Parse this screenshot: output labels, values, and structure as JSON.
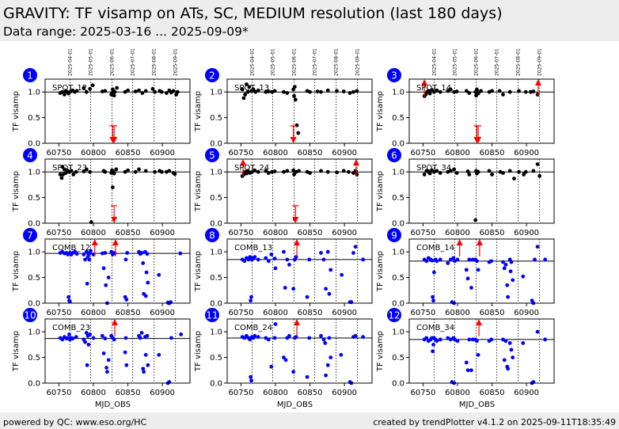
{
  "header": {
    "title": "GRAVITY: TF visamp on ATs, SC, MEDIUM resolution (last 180 days)",
    "subtitle": "Data range: 2025-03-16 ... 2025-09-09*"
  },
  "footer": {
    "left": "powered by QC: www.eso.org/HC",
    "right": "created by trendPlotter v4.1.2 on 2025-09-11T18:35:49"
  },
  "colors": {
    "spot": "#000000",
    "comb": "#0000ff",
    "outlier": "#ff0000",
    "badge": "#0000ff",
    "bar": "#ededed"
  },
  "chart_data": {
    "type": "scatter",
    "xlabel": "MJD_OBS",
    "ylabel": "TF visamp",
    "xlim": [
      60730,
      60940
    ],
    "ylim": [
      0,
      1.25
    ],
    "xticks": [
      60750,
      60800,
      60850,
      60900
    ],
    "yticks": [
      0.0,
      0.5,
      1.0
    ],
    "date_markers": [
      {
        "mjd": 60766,
        "label": "2025-04-01"
      },
      {
        "mjd": 60796,
        "label": "2025-05-01"
      },
      {
        "mjd": 60827,
        "label": "2025-06-01"
      },
      {
        "mjd": 60857,
        "label": "2025-07-01"
      },
      {
        "mjd": 60888,
        "label": "2025-08-01"
      },
      {
        "mjd": 60919,
        "label": "2025-09-01"
      }
    ],
    "panels": [
      {
        "num": "1",
        "label": "SPOT_12",
        "color": "black",
        "ref": 1.0,
        "x": [
          60752,
          60755,
          60758,
          60760,
          60762,
          60764,
          60767,
          60770,
          60773,
          60776,
          60786,
          60790,
          60795,
          60799,
          60813,
          60817,
          60826,
          60827,
          60828,
          60829,
          60830,
          60831,
          60834,
          60846,
          60850,
          60861,
          60866,
          60871,
          60876,
          60886,
          60889,
          60896,
          60899,
          60906,
          60910,
          60913,
          60916,
          60920,
          60922
        ],
        "y": [
          0.98,
          1.0,
          0.95,
          1.02,
          1.0,
          0.97,
          1.01,
          1.03,
          1.0,
          1.02,
          1.08,
          1.0,
          1.06,
          1.13,
          1.01,
          1.02,
          0.95,
          0.98,
          1.05,
          1.02,
          0.93,
          1.0,
          1.08,
          1.0,
          1.03,
          1.01,
          1.03,
          0.98,
          1.02,
          1.06,
          1.0,
          1.02,
          1.0,
          0.98,
          1.03,
          0.99,
          1.02,
          0.95,
          1.0
        ],
        "outliers": [
          {
            "x": 60828,
            "dir": "down"
          },
          {
            "x": 60830,
            "dir": "down"
          }
        ]
      },
      {
        "num": "2",
        "label": "SPOT_13",
        "color": "black",
        "ref": 1.0,
        "x": [
          60752,
          60754,
          60756,
          60758,
          60760,
          60762,
          60765,
          60768,
          60771,
          60775,
          60786,
          60790,
          60795,
          60799,
          60812,
          60817,
          60826,
          60827,
          60828,
          60829,
          60831,
          60833,
          60846,
          60850,
          60861,
          60866,
          60876,
          60889,
          60899,
          60908,
          60913,
          60918
        ],
        "y": [
          1.05,
          0.88,
          0.95,
          1.15,
          1.0,
          1.1,
          1.02,
          1.05,
          1.0,
          1.03,
          1.0,
          1.01,
          1.0,
          1.02,
          1.0,
          0.98,
          1.05,
          0.92,
          1.1,
          0.85,
          0.35,
          0.2,
          1.02,
          1.0,
          1.01,
          1.0,
          1.03,
          1.02,
          1.01,
          0.98,
          1.0,
          1.02
        ],
        "outliers": [
          {
            "x": 60826,
            "dir": "down"
          }
        ]
      },
      {
        "num": "3",
        "label": "SPOT_14",
        "color": "black",
        "ref": 1.0,
        "x": [
          60752,
          60754,
          60756,
          60758,
          60760,
          60763,
          60766,
          60770,
          60775,
          60786,
          60790,
          60795,
          60799,
          60813,
          60817,
          60826,
          60827,
          60828,
          60830,
          60831,
          60834,
          60846,
          60850,
          60861,
          60866,
          60876,
          60889,
          60899,
          60906,
          60910,
          60916
        ],
        "y": [
          0.92,
          0.95,
          1.0,
          1.02,
          0.97,
          1.04,
          1.0,
          1.03,
          1.0,
          1.02,
          1.05,
          1.0,
          1.01,
          1.02,
          0.98,
          1.0,
          0.93,
          1.05,
          0.97,
          1.0,
          1.02,
          1.0,
          1.02,
          1.02,
          0.95,
          1.0,
          1.02,
          1.0,
          1.0,
          1.01,
          0.95
        ],
        "outliers": [
          {
            "x": 60752,
            "dir": "up"
          },
          {
            "x": 60828,
            "dir": "down"
          },
          {
            "x": 60830,
            "dir": "down"
          },
          {
            "x": 60917,
            "dir": "up"
          }
        ]
      },
      {
        "num": "4",
        "label": "SPOT_23",
        "color": "black",
        "ref": 1.0,
        "x": [
          60752,
          60754,
          60755,
          60756,
          60758,
          60760,
          60762,
          60765,
          60768,
          60771,
          60775,
          60786,
          60790,
          60795,
          60797,
          60815,
          60817,
          60826,
          60827,
          60828,
          60829,
          60830,
          60833,
          60846,
          60850,
          60861,
          60866,
          60876,
          60889,
          60896,
          60899,
          60906,
          60910,
          60916,
          60918
        ],
        "y": [
          0.95,
          0.88,
          1.1,
          0.95,
          1.05,
          0.98,
          1.03,
          1.0,
          1.02,
          0.95,
          1.0,
          1.01,
          1.05,
          1.0,
          0.02,
          1.02,
          1.0,
          0.98,
          1.03,
          0.7,
          1.0,
          0.97,
          1.05,
          1.0,
          1.03,
          1.0,
          1.05,
          1.02,
          1.0,
          1.02,
          1.0,
          1.0,
          1.02,
          0.98,
          0.96
        ],
        "outliers": [
          {
            "x": 60830,
            "dir": "down"
          }
        ]
      },
      {
        "num": "5",
        "label": "SPOT_24",
        "color": "black",
        "ref": 1.0,
        "x": [
          60752,
          60754,
          60756,
          60758,
          60760,
          60763,
          60766,
          60770,
          60775,
          60786,
          60790,
          60795,
          60799,
          60812,
          60817,
          60826,
          60827,
          60828,
          60830,
          60834,
          60846,
          60850,
          60866,
          60876,
          60889,
          60899,
          60906,
          60913,
          60916,
          60918
        ],
        "y": [
          0.92,
          0.95,
          1.0,
          0.97,
          1.02,
          0.98,
          1.0,
          1.03,
          1.0,
          1.02,
          0.98,
          1.0,
          1.01,
          1.0,
          1.02,
          1.03,
          0.95,
          0.08,
          1.0,
          1.02,
          1.0,
          0.98,
          1.02,
          1.0,
          0.99,
          1.02,
          1.0,
          0.98,
          1.02,
          0.95
        ],
        "outliers": [
          {
            "x": 60753,
            "dir": "up"
          },
          {
            "x": 60829,
            "dir": "down"
          },
          {
            "x": 60917,
            "dir": "up"
          }
        ]
      },
      {
        "num": "6",
        "label": "SPOT_34",
        "color": "black",
        "ref": 1.0,
        "x": [
          60752,
          60755,
          60758,
          60760,
          60763,
          60766,
          60770,
          60775,
          60786,
          60790,
          60795,
          60799,
          60815,
          60817,
          60826,
          60827,
          60828,
          60830,
          60846,
          60850,
          60862,
          60866,
          60876,
          60882,
          60889,
          60896,
          60899,
          60910,
          60916,
          60919
        ],
        "y": [
          0.95,
          1.02,
          1.0,
          0.97,
          1.03,
          1.0,
          1.02,
          0.98,
          1.0,
          1.02,
          1.05,
          0.98,
          1.01,
          0.95,
          0.06,
          1.02,
          0.97,
          1.0,
          1.02,
          0.95,
          1.0,
          0.98,
          1.02,
          0.87,
          1.0,
          0.95,
          1.0,
          1.02,
          1.15,
          0.92
        ],
        "outliers": []
      },
      {
        "num": "7",
        "label": "COMB_12",
        "color": "blue",
        "ref": 0.97,
        "x": [
          60752,
          60755,
          60758,
          60761,
          60763,
          60764,
          60765,
          60766,
          60766,
          60767,
          60768,
          60770,
          60773,
          60776,
          60786,
          60788,
          60790,
          60791,
          60792,
          60793,
          60794,
          60795,
          60796,
          60800,
          60813,
          60815,
          60817,
          60818,
          60820,
          60822,
          60826,
          60828,
          60830,
          60831,
          60846,
          60847,
          60848,
          60849,
          60866,
          60868,
          60870,
          60872,
          60873,
          60875,
          60876,
          60877,
          60878,
          60879,
          60895,
          60908,
          60909,
          60910,
          60911,
          60912,
          60926
        ],
        "y": [
          0.98,
          1.0,
          0.97,
          0.98,
          0.95,
          0.12,
          0.05,
          0.98,
          0.03,
          0.97,
          0.95,
          0.98,
          1.0,
          0.96,
          0.95,
          0.85,
          1.0,
          0.38,
          0.9,
          0.95,
          0.85,
          0.98,
          1.02,
          0.95,
          0.97,
          0.68,
          0.98,
          0.35,
          0.0,
          0.5,
          1.0,
          0.95,
          0.98,
          0.97,
          0.12,
          0.85,
          0.07,
          0.98,
          1.0,
          0.96,
          0.98,
          0.78,
          0.18,
          1.0,
          0.14,
          0.6,
          0.96,
          0.4,
          0.55,
          0.01,
          0.0,
          0.0,
          0.01,
          0.02,
          0.97
        ],
        "outliers": [
          {
            "x": 60802,
            "dir": "up"
          },
          {
            "x": 60832,
            "dir": "up"
          }
        ]
      },
      {
        "num": "8",
        "label": "COMB_13",
        "color": "blue",
        "ref": 0.85,
        "x": [
          60752,
          60755,
          60758,
          60761,
          60763,
          60764,
          60765,
          60766,
          60768,
          60770,
          60775,
          60786,
          60790,
          60794,
          60799,
          60800,
          60812,
          60814,
          60817,
          60820,
          60826,
          60828,
          60830,
          60846,
          60849,
          60866,
          60870,
          60873,
          60876,
          60878,
          60880,
          60896,
          60908,
          60910,
          60913,
          60916,
          60927
        ],
        "y": [
          0.85,
          0.82,
          0.88,
          0.85,
          0.9,
          0.05,
          0.12,
          0.85,
          0.88,
          0.9,
          0.85,
          0.88,
          0.82,
          0.95,
          0.87,
          0.68,
          1.0,
          0.3,
          0.85,
          0.75,
          0.28,
          0.85,
          0.9,
          0.12,
          0.85,
          0.98,
          0.85,
          0.28,
          1.0,
          0.18,
          0.65,
          0.55,
          0.02,
          0.02,
          0.98,
          1.1,
          0.85
        ],
        "outliers": [
          {
            "x": 60831,
            "dir": "up"
          }
        ]
      },
      {
        "num": "9",
        "label": "COMB_14",
        "color": "blue",
        "ref": 0.82,
        "x": [
          60752,
          60755,
          60758,
          60761,
          60763,
          60764,
          60765,
          60766,
          60768,
          60770,
          60775,
          60786,
          60790,
          60792,
          60794,
          60795,
          60796,
          60800,
          60813,
          60815,
          60817,
          60820,
          60822,
          60826,
          60828,
          60830,
          60846,
          60849,
          60866,
          60868,
          60870,
          60872,
          60873,
          60876,
          60877,
          60878,
          60880,
          60895,
          60908,
          60910,
          60912,
          60916,
          60927
        ],
        "y": [
          0.85,
          0.82,
          0.88,
          0.85,
          0.83,
          0.12,
          0.05,
          0.6,
          0.85,
          0.82,
          0.85,
          0.78,
          0.85,
          0.02,
          0.88,
          0.0,
          0.82,
          0.85,
          0.65,
          0.48,
          0.85,
          0.3,
          0.85,
          0.85,
          0.82,
          0.65,
          0.8,
          0.82,
          0.8,
          0.68,
          0.75,
          0.35,
          0.12,
          0.85,
          0.62,
          0.8,
          0.45,
          0.52,
          0.05,
          0.0,
          0.85,
          1.1,
          0.85
        ],
        "outliers": [
          {
            "x": 60803,
            "dir": "up"
          },
          {
            "x": 60832,
            "dir": "up"
          }
        ]
      },
      {
        "num": "10",
        "label": "COMB_23",
        "color": "blue",
        "ref": 0.87,
        "x": [
          60752,
          60755,
          60758,
          60761,
          60763,
          60765,
          60766,
          60768,
          60770,
          60775,
          60786,
          60788,
          60790,
          60791,
          60792,
          60793,
          60795,
          60800,
          60813,
          60815,
          60817,
          60819,
          60820,
          60822,
          60826,
          60828,
          60830,
          60846,
          60847,
          60848,
          60866,
          60868,
          60870,
          60872,
          60873,
          60875,
          60876,
          60878,
          60879,
          60895,
          60908,
          60910,
          60913,
          60927
        ],
        "y": [
          0.88,
          0.85,
          0.9,
          0.87,
          0.88,
          0.95,
          0.85,
          0.88,
          0.87,
          0.9,
          0.85,
          0.8,
          0.98,
          0.35,
          0.92,
          0.75,
          0.95,
          0.88,
          0.92,
          0.58,
          0.87,
          0.3,
          0.22,
          0.45,
          0.92,
          0.88,
          0.85,
          0.6,
          0.88,
          0.35,
          0.92,
          0.88,
          0.98,
          0.28,
          0.22,
          0.9,
          0.55,
          0.92,
          0.35,
          0.55,
          0.0,
          0.02,
          0.88,
          0.95
        ],
        "outliers": [
          {
            "x": 60831,
            "dir": "up"
          }
        ]
      },
      {
        "num": "11",
        "label": "COMB_24",
        "color": "blue",
        "ref": 0.88,
        "x": [
          60752,
          60755,
          60758,
          60761,
          60763,
          60764,
          60765,
          60766,
          60768,
          60770,
          60775,
          60786,
          60790,
          60794,
          60799,
          60800,
          60812,
          60815,
          60817,
          60820,
          60826,
          60828,
          60830,
          60846,
          60849,
          60866,
          60870,
          60872,
          60873,
          60876,
          60878,
          60880,
          60895,
          60908,
          60910,
          60913,
          60916,
          60927
        ],
        "y": [
          0.9,
          0.88,
          0.92,
          0.88,
          0.85,
          0.12,
          0.05,
          0.9,
          0.88,
          0.92,
          0.9,
          0.88,
          0.85,
          0.32,
          0.88,
          1.15,
          0.5,
          0.45,
          0.88,
          0.92,
          0.22,
          0.88,
          0.9,
          0.12,
          0.88,
          0.92,
          0.85,
          0.78,
          0.15,
          0.35,
          0.88,
          0.5,
          0.55,
          0.02,
          0.0,
          0.9,
          0.92,
          0.9
        ],
        "outliers": [
          {
            "x": 60831,
            "dir": "up"
          }
        ]
      },
      {
        "num": "12",
        "label": "COMB_34",
        "color": "blue",
        "ref": 0.85,
        "x": [
          60752,
          60755,
          60758,
          60761,
          60763,
          60764,
          60765,
          60766,
          60768,
          60770,
          60775,
          60786,
          60790,
          60792,
          60794,
          60795,
          60796,
          60800,
          60813,
          60815,
          60817,
          60820,
          60822,
          60826,
          60828,
          60830,
          60846,
          60849,
          60866,
          60868,
          60870,
          60872,
          60873,
          60876,
          60878,
          60880,
          60895,
          60908,
          60910,
          60916,
          60927
        ],
        "y": [
          0.85,
          0.88,
          0.82,
          0.85,
          0.88,
          0.62,
          0.75,
          0.88,
          0.85,
          0.82,
          0.85,
          0.88,
          0.85,
          0.02,
          0.88,
          0.0,
          0.85,
          0.82,
          0.4,
          0.25,
          0.85,
          0.25,
          0.85,
          0.85,
          0.82,
          0.55,
          0.82,
          0.85,
          0.85,
          0.45,
          0.82,
          0.32,
          0.28,
          0.78,
          0.65,
          0.5,
          0.78,
          0.0,
          0.02,
          1.0,
          0.85
        ],
        "outliers": [
          {
            "x": 60831,
            "dir": "up"
          }
        ]
      }
    ]
  }
}
